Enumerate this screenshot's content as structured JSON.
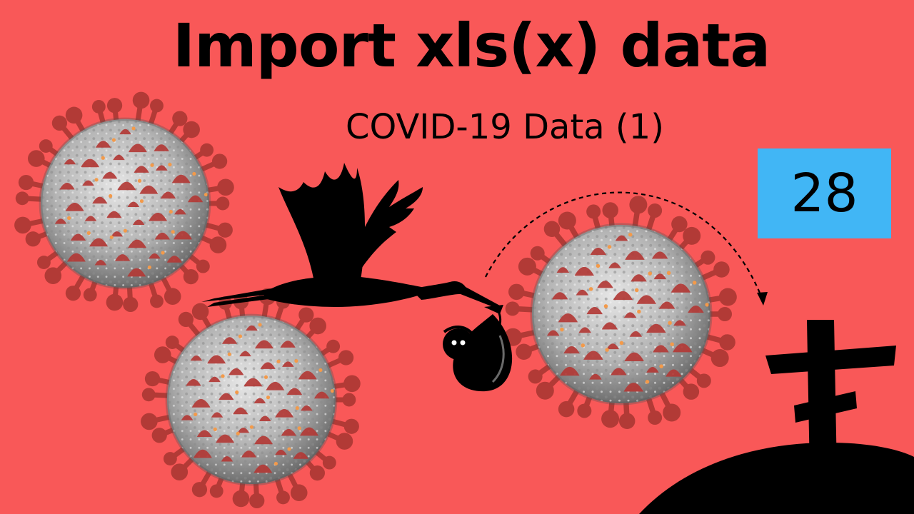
{
  "thumbnail": {
    "title": "Import xls(x) data",
    "subtitle": "COVID-19 Data (1)",
    "episode_number": "28"
  },
  "colors": {
    "background": "#f95858",
    "badge": "#41b6f5",
    "virus_body": "#bdbdbd",
    "virus_spike": "#b23a36",
    "virus_dot": "#f39a4a",
    "silhouette": "#000000"
  },
  "icons": [
    "virus-icon",
    "stork-icon",
    "baby-bundle-icon",
    "cross-icon",
    "hill-icon",
    "dashed-arrow-icon"
  ]
}
